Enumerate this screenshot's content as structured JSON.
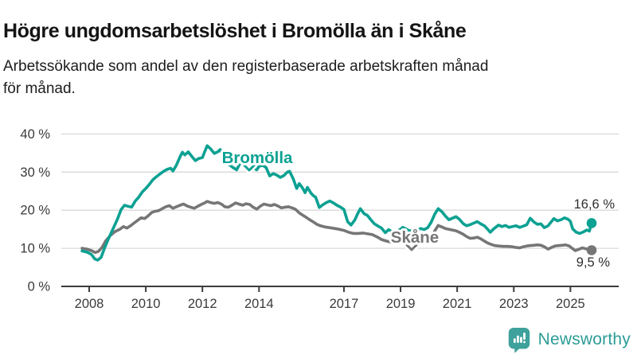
{
  "header": {
    "title": "Högre ungdomsarbetslöshet i Bromölla än i Skåne",
    "subtitle_lines": {
      "0": "Arbetssökande som andel av den registerbaserade arbetskraften månad",
      "1": "för månad."
    }
  },
  "chart_data": {
    "type": "line",
    "title": "Högre ungdomsarbetslöshet i Bromölla än i Skåne",
    "subtitle": "Arbetssökande som andel av den registerbaserade arbetskraften månad för månad.",
    "unit": "%",
    "grid": "horizontal",
    "x_axis": {
      "tick_years": [
        2008,
        2010,
        2012,
        2014,
        2017,
        2019,
        2021,
        2023,
        2025
      ],
      "tick_labels": [
        "2008",
        "2010",
        "2012",
        "2014",
        "2017",
        "2019",
        "2021",
        "2023",
        "2025"
      ],
      "range": [
        2007.6,
        2026.7
      ]
    },
    "y_axis": {
      "tick_values": [
        0,
        10,
        20,
        30,
        40
      ],
      "tick_labels": [
        "0 %",
        "10 %",
        "20 %",
        "30 %",
        "40 %"
      ],
      "range": [
        0,
        43
      ]
    },
    "series": [
      {
        "name": "Skåne",
        "color": "#767676",
        "final_value": 9.5,
        "end_label": "9,5 %",
        "points": [
          [
            2007.75,
            10.0
          ],
          [
            2007.92,
            9.8
          ],
          [
            2008.08,
            9.4
          ],
          [
            2008.21,
            8.9
          ],
          [
            2008.33,
            9.2
          ],
          [
            2008.46,
            10.3
          ],
          [
            2008.58,
            11.9
          ],
          [
            2008.75,
            13.4
          ],
          [
            2008.92,
            14.4
          ],
          [
            2009.08,
            15.0
          ],
          [
            2009.21,
            15.7
          ],
          [
            2009.33,
            15.3
          ],
          [
            2009.46,
            15.9
          ],
          [
            2009.58,
            16.6
          ],
          [
            2009.71,
            17.3
          ],
          [
            2009.83,
            18.0
          ],
          [
            2009.96,
            17.8
          ],
          [
            2010.08,
            18.5
          ],
          [
            2010.21,
            19.4
          ],
          [
            2010.33,
            19.7
          ],
          [
            2010.46,
            19.9
          ],
          [
            2010.58,
            20.4
          ],
          [
            2010.71,
            20.9
          ],
          [
            2010.83,
            21.2
          ],
          [
            2010.96,
            20.5
          ],
          [
            2011.08,
            20.9
          ],
          [
            2011.21,
            21.3
          ],
          [
            2011.33,
            21.6
          ],
          [
            2011.46,
            21.1
          ],
          [
            2011.58,
            20.8
          ],
          [
            2011.71,
            20.5
          ],
          [
            2011.83,
            21.0
          ],
          [
            2011.96,
            21.5
          ],
          [
            2012.08,
            21.9
          ],
          [
            2012.17,
            22.3
          ],
          [
            2012.29,
            22.0
          ],
          [
            2012.42,
            21.8
          ],
          [
            2012.54,
            22.0
          ],
          [
            2012.67,
            21.6
          ],
          [
            2012.79,
            20.9
          ],
          [
            2012.92,
            20.8
          ],
          [
            2013.04,
            21.3
          ],
          [
            2013.17,
            21.9
          ],
          [
            2013.29,
            21.6
          ],
          [
            2013.42,
            21.3
          ],
          [
            2013.54,
            21.7
          ],
          [
            2013.67,
            21.5
          ],
          [
            2013.79,
            20.8
          ],
          [
            2013.92,
            20.3
          ],
          [
            2014.04,
            21.0
          ],
          [
            2014.17,
            21.6
          ],
          [
            2014.29,
            21.4
          ],
          [
            2014.42,
            21.2
          ],
          [
            2014.54,
            21.5
          ],
          [
            2014.67,
            21.1
          ],
          [
            2014.79,
            20.6
          ],
          [
            2014.92,
            20.8
          ],
          [
            2015.04,
            20.9
          ],
          [
            2015.17,
            20.6
          ],
          [
            2015.29,
            20.2
          ],
          [
            2015.42,
            19.3
          ],
          [
            2015.54,
            18.7
          ],
          [
            2015.67,
            18.1
          ],
          [
            2015.79,
            17.5
          ],
          [
            2015.92,
            16.9
          ],
          [
            2016.04,
            16.3
          ],
          [
            2016.17,
            15.9
          ],
          [
            2016.33,
            15.6
          ],
          [
            2016.5,
            15.4
          ],
          [
            2016.67,
            15.2
          ],
          [
            2016.83,
            15.0
          ],
          [
            2017.0,
            14.7
          ],
          [
            2017.17,
            14.2
          ],
          [
            2017.33,
            13.9
          ],
          [
            2017.5,
            13.9
          ],
          [
            2017.67,
            14.0
          ],
          [
            2017.83,
            13.8
          ],
          [
            2018.0,
            13.6
          ],
          [
            2018.17,
            13.0
          ],
          [
            2018.33,
            12.3
          ],
          [
            2018.5,
            11.9
          ],
          [
            2018.67,
            11.6
          ],
          [
            2018.83,
            11.7
          ],
          [
            2019.0,
            12.1
          ],
          [
            2019.17,
            12.0
          ],
          [
            2019.33,
            11.8
          ],
          [
            2019.5,
            11.6
          ],
          [
            2019.67,
            11.5
          ],
          [
            2019.83,
            11.6
          ],
          [
            2019.96,
            11.9
          ],
          [
            2020.08,
            12.6
          ],
          [
            2020.21,
            14.6
          ],
          [
            2020.33,
            16.0
          ],
          [
            2020.46,
            15.6
          ],
          [
            2020.58,
            15.2
          ],
          [
            2020.71,
            15.0
          ],
          [
            2020.83,
            14.8
          ],
          [
            2020.96,
            14.6
          ],
          [
            2021.08,
            14.2
          ],
          [
            2021.21,
            13.7
          ],
          [
            2021.33,
            13.1
          ],
          [
            2021.46,
            12.6
          ],
          [
            2021.58,
            12.7
          ],
          [
            2021.71,
            12.9
          ],
          [
            2021.83,
            12.5
          ],
          [
            2021.96,
            11.9
          ],
          [
            2022.08,
            11.4
          ],
          [
            2022.21,
            11.0
          ],
          [
            2022.33,
            10.7
          ],
          [
            2022.46,
            10.6
          ],
          [
            2022.63,
            10.5
          ],
          [
            2022.79,
            10.5
          ],
          [
            2022.96,
            10.4
          ],
          [
            2023.08,
            10.2
          ],
          [
            2023.21,
            10.1
          ],
          [
            2023.33,
            10.4
          ],
          [
            2023.46,
            10.6
          ],
          [
            2023.58,
            10.7
          ],
          [
            2023.71,
            10.8
          ],
          [
            2023.83,
            10.9
          ],
          [
            2023.96,
            10.8
          ],
          [
            2024.08,
            10.4
          ],
          [
            2024.21,
            9.8
          ],
          [
            2024.33,
            10.2
          ],
          [
            2024.46,
            10.6
          ],
          [
            2024.58,
            10.7
          ],
          [
            2024.71,
            10.8
          ],
          [
            2024.83,
            10.9
          ],
          [
            2024.96,
            10.6
          ],
          [
            2025.08,
            9.9
          ],
          [
            2025.17,
            9.4
          ],
          [
            2025.29,
            9.7
          ],
          [
            2025.42,
            10.1
          ],
          [
            2025.54,
            9.9
          ],
          [
            2025.63,
            9.7
          ],
          [
            2025.75,
            9.5
          ]
        ]
      },
      {
        "name": "Bromölla",
        "color": "#0ca192",
        "final_value": 16.6,
        "end_label": "16,6 %",
        "points": [
          [
            2007.75,
            9.3
          ],
          [
            2007.92,
            9.0
          ],
          [
            2008.08,
            8.4
          ],
          [
            2008.2,
            7.2
          ],
          [
            2008.3,
            6.9
          ],
          [
            2008.42,
            7.6
          ],
          [
            2008.54,
            10.0
          ],
          [
            2008.67,
            12.3
          ],
          [
            2008.83,
            14.9
          ],
          [
            2009.0,
            17.7
          ],
          [
            2009.13,
            20.2
          ],
          [
            2009.25,
            21.3
          ],
          [
            2009.38,
            21.0
          ],
          [
            2009.5,
            20.8
          ],
          [
            2009.63,
            22.4
          ],
          [
            2009.75,
            23.4
          ],
          [
            2009.88,
            24.8
          ],
          [
            2010.0,
            25.7
          ],
          [
            2010.13,
            26.8
          ],
          [
            2010.25,
            28.0
          ],
          [
            2010.38,
            28.8
          ],
          [
            2010.5,
            29.5
          ],
          [
            2010.63,
            30.2
          ],
          [
            2010.75,
            30.7
          ],
          [
            2010.88,
            31.0
          ],
          [
            2010.96,
            30.3
          ],
          [
            2011.08,
            31.8
          ],
          [
            2011.21,
            34.0
          ],
          [
            2011.29,
            35.2
          ],
          [
            2011.38,
            34.5
          ],
          [
            2011.5,
            35.3
          ],
          [
            2011.63,
            34.1
          ],
          [
            2011.75,
            33.0
          ],
          [
            2011.88,
            33.6
          ],
          [
            2012.0,
            33.8
          ],
          [
            2012.08,
            35.3
          ],
          [
            2012.17,
            36.9
          ],
          [
            2012.29,
            36.1
          ],
          [
            2012.42,
            34.9
          ],
          [
            2012.54,
            35.3
          ],
          [
            2012.63,
            35.9
          ],
          [
            2012.75,
            34.3
          ],
          [
            2012.83,
            32.4
          ],
          [
            2012.96,
            31.9
          ],
          [
            2013.08,
            31.2
          ],
          [
            2013.21,
            30.6
          ],
          [
            2013.33,
            32.3
          ],
          [
            2013.42,
            33.9
          ],
          [
            2013.54,
            33.3
          ],
          [
            2013.67,
            32.8
          ],
          [
            2013.79,
            31.2
          ],
          [
            2013.92,
            30.6
          ],
          [
            2014.0,
            31.5
          ],
          [
            2014.13,
            31.8
          ],
          [
            2014.25,
            31.2
          ],
          [
            2014.38,
            29.0
          ],
          [
            2014.5,
            29.6
          ],
          [
            2014.63,
            29.2
          ],
          [
            2014.75,
            28.6
          ],
          [
            2014.88,
            29.1
          ],
          [
            2015.0,
            30.0
          ],
          [
            2015.08,
            30.2
          ],
          [
            2015.21,
            28.2
          ],
          [
            2015.33,
            25.7
          ],
          [
            2015.42,
            27.0
          ],
          [
            2015.54,
            25.8
          ],
          [
            2015.63,
            24.6
          ],
          [
            2015.71,
            26.0
          ],
          [
            2015.83,
            24.5
          ],
          [
            2015.92,
            23.8
          ],
          [
            2016.0,
            23.4
          ],
          [
            2016.13,
            20.7
          ],
          [
            2016.25,
            21.4
          ],
          [
            2016.38,
            22.0
          ],
          [
            2016.5,
            22.4
          ],
          [
            2016.63,
            21.9
          ],
          [
            2016.75,
            21.3
          ],
          [
            2016.88,
            20.8
          ],
          [
            2017.0,
            20.2
          ],
          [
            2017.13,
            17.0
          ],
          [
            2017.25,
            16.1
          ],
          [
            2017.38,
            17.4
          ],
          [
            2017.5,
            19.3
          ],
          [
            2017.58,
            20.4
          ],
          [
            2017.71,
            19.1
          ],
          [
            2017.83,
            18.6
          ],
          [
            2017.96,
            17.4
          ],
          [
            2018.08,
            16.4
          ],
          [
            2018.21,
            15.8
          ],
          [
            2018.33,
            15.3
          ],
          [
            2018.46,
            14.1
          ],
          [
            2018.58,
            14.9
          ],
          [
            2018.71,
            14.3
          ],
          [
            2018.83,
            14.5
          ],
          [
            2018.96,
            14.8
          ],
          [
            2019.08,
            15.5
          ],
          [
            2019.21,
            15.0
          ],
          [
            2019.33,
            14.5
          ],
          [
            2019.46,
            15.0
          ],
          [
            2019.58,
            14.7
          ],
          [
            2019.71,
            15.2
          ],
          [
            2019.83,
            14.9
          ],
          [
            2019.96,
            15.4
          ],
          [
            2020.08,
            16.8
          ],
          [
            2020.21,
            19.0
          ],
          [
            2020.33,
            20.4
          ],
          [
            2020.46,
            19.6
          ],
          [
            2020.58,
            18.5
          ],
          [
            2020.71,
            17.5
          ],
          [
            2020.83,
            17.9
          ],
          [
            2020.96,
            18.3
          ],
          [
            2021.08,
            17.6
          ],
          [
            2021.21,
            16.5
          ],
          [
            2021.33,
            15.9
          ],
          [
            2021.46,
            16.2
          ],
          [
            2021.58,
            16.6
          ],
          [
            2021.71,
            17.0
          ],
          [
            2021.83,
            16.4
          ],
          [
            2021.96,
            15.9
          ],
          [
            2022.08,
            15.0
          ],
          [
            2022.17,
            14.2
          ],
          [
            2022.29,
            15.1
          ],
          [
            2022.46,
            16.1
          ],
          [
            2022.58,
            15.7
          ],
          [
            2022.71,
            16.0
          ],
          [
            2022.83,
            15.5
          ],
          [
            2022.96,
            15.7
          ],
          [
            2023.08,
            15.9
          ],
          [
            2023.21,
            15.5
          ],
          [
            2023.33,
            15.8
          ],
          [
            2023.46,
            16.2
          ],
          [
            2023.58,
            17.9
          ],
          [
            2023.71,
            16.9
          ],
          [
            2023.83,
            16.3
          ],
          [
            2023.96,
            16.4
          ],
          [
            2024.08,
            15.4
          ],
          [
            2024.21,
            15.9
          ],
          [
            2024.33,
            17.0
          ],
          [
            2024.42,
            17.8
          ],
          [
            2024.54,
            17.2
          ],
          [
            2024.67,
            17.5
          ],
          [
            2024.79,
            18.0
          ],
          [
            2024.92,
            17.6
          ],
          [
            2025.0,
            17.1
          ],
          [
            2025.08,
            15.1
          ],
          [
            2025.21,
            14.2
          ],
          [
            2025.33,
            13.9
          ],
          [
            2025.46,
            14.3
          ],
          [
            2025.58,
            14.8
          ],
          [
            2025.67,
            14.5
          ],
          [
            2025.75,
            16.6
          ]
        ]
      }
    ],
    "colors": {
      "grid": "#d9d9d9",
      "axis": "#3c3c3c",
      "tick_text": "#3a3a3a",
      "value_label_text": "#2e2e2e"
    }
  },
  "footer": {
    "brand": "Newsworthy",
    "brand_color": "#2c9c96",
    "logo_color": "#3fa19b"
  }
}
